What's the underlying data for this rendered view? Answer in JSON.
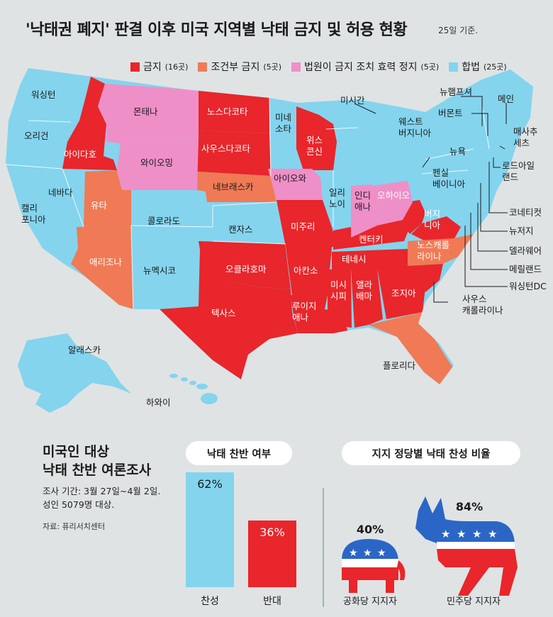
{
  "title": "'낙태권 폐지' 판결 이후 미국 지역별 낙태 금지 및 허용 현황",
  "title_note": "25일 기준.",
  "colors": {
    "banned": "#e8262b",
    "conditional": "#f07a55",
    "suspended": "#ef8fc8",
    "legal": "#84d4ee",
    "background": "#dfe3e4"
  },
  "legend": [
    {
      "label": "금지",
      "count": "(16곳)",
      "color": "#e8262b"
    },
    {
      "label": "조건부 금지",
      "count": "(5곳)",
      "color": "#f07a55"
    },
    {
      "label": "법원이 금지 조치 효력 정지",
      "count": "(5곳)",
      "color": "#ef8fc8"
    },
    {
      "label": "합법",
      "count": "(25곳)",
      "color": "#84d4ee"
    }
  ],
  "states": {
    "washington": "워싱턴",
    "oregon": "오리건",
    "california": "캘리\n포니아",
    "nevada": "네바다",
    "idaho": "아이다호",
    "montana": "몬태나",
    "wyoming": "와이오밍",
    "utah": "유타",
    "arizona": "애리조나",
    "colorado": "콜로라도",
    "new_mexico": "뉴멕시코",
    "north_dakota": "노스다코타",
    "south_dakota": "사우스다코타",
    "nebraska": "네브래스카",
    "kansas": "캔자스",
    "oklahoma": "오클라호마",
    "texas": "텍사스",
    "minnesota": "미네\n소타",
    "iowa": "아이오와",
    "missouri": "미주리",
    "arkansas": "아칸소",
    "louisiana": "루이지\n애나",
    "wisconsin": "위스\n콘신",
    "illinois": "일리\n노이",
    "michigan": "미시간",
    "indiana": "인디\n애나",
    "ohio": "오하이오",
    "kentucky": "켄터키",
    "tennessee": "테네시",
    "mississippi": "미시\n시피",
    "alabama": "앨라\n배마",
    "georgia": "조지아",
    "florida": "플로리다",
    "south_carolina": "사우스\n캐롤라이나",
    "north_carolina": "노스캐롤\n라이나",
    "virginia": "버지\n니아",
    "west_virginia": "웨스트\n버지니아",
    "pennsylvania": "펜실\n베이니아",
    "new_york": "뉴욕",
    "vermont": "버몬트",
    "new_hampshire": "뉴햄프셔",
    "maine": "메인",
    "massachusetts": "매사추\n세츠",
    "rhode_island": "로드아일\n랜드",
    "connecticut": "코네티컷",
    "new_jersey": "뉴저지",
    "delaware": "델라웨어",
    "maryland": "메릴랜드",
    "dc": "워싱턴DC",
    "alaska": "알래스카",
    "hawaii": "하와이"
  },
  "survey": {
    "title_line1": "미국인 대상",
    "title_line2": "낙태 찬반 여론조사",
    "period": "조사 기간: 3월 27일~4월 2일.",
    "sample": "성인 5079명 대상.",
    "source": "자료: 퓨리서치센터"
  },
  "chart_data": [
    {
      "type": "bar",
      "title": "낙태 찬반 여부",
      "categories": [
        "찬성",
        "반대"
      ],
      "values": [
        62,
        36
      ],
      "value_labels": [
        "62%",
        "36%"
      ],
      "colors": [
        "#84d4ee",
        "#e8262b"
      ]
    },
    {
      "type": "bar",
      "title": "지지 정당별 낙태 찬성 비율",
      "categories": [
        "공화당 지지자",
        "민주당 지지자"
      ],
      "values": [
        40,
        84
      ],
      "value_labels": [
        "40%",
        "84%"
      ]
    }
  ]
}
